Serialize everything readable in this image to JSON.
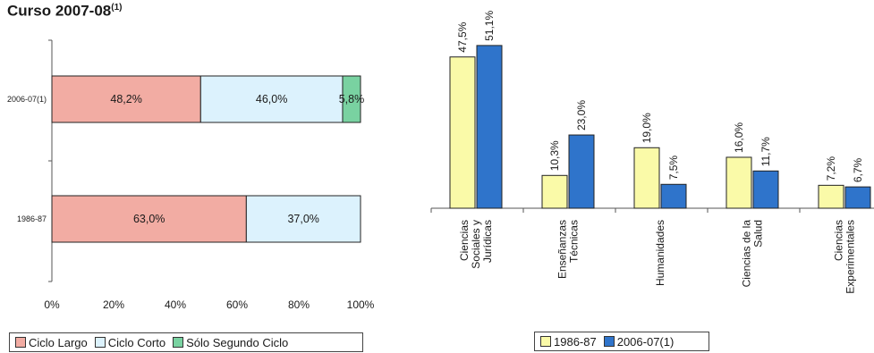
{
  "page": {
    "title": "Curso 2007-08",
    "title_sup": "(1)"
  },
  "chart_data": [
    {
      "type": "bar",
      "orientation": "horizontal",
      "stacked": true,
      "percent_stacked": true,
      "categories": [
        "2006-07(1)",
        "1986-87"
      ],
      "series": [
        {
          "name": "Ciclo Largo",
          "color": "#f2aca3",
          "values": [
            48.2,
            63.0
          ],
          "labels": [
            "48,2%",
            "63,0%"
          ]
        },
        {
          "name": "Ciclo Corto",
          "color": "#dcf2fd",
          "values": [
            46.0,
            37.0
          ],
          "labels": [
            "46,0%",
            "37,0%"
          ]
        },
        {
          "name": "Sólo Segundo Ciclo",
          "color": "#79d2a1",
          "values": [
            5.8,
            0
          ],
          "labels": [
            "5,8%",
            ""
          ]
        }
      ],
      "xticks": [
        "0%",
        "20%",
        "40%",
        "60%",
        "80%",
        "100%"
      ],
      "xlim": [
        0,
        100
      ],
      "legend_position": "bottom"
    },
    {
      "type": "bar",
      "orientation": "vertical",
      "categories": [
        "Ciencias Sociales y Jurídicas",
        "Enseñanzas Técnicas",
        "Humanidades",
        "Ciencias de la Salud",
        "Ciencias Experimentales"
      ],
      "category_lines": [
        [
          "Ciencias",
          "Sociales y",
          "Jurídicas"
        ],
        [
          "Enseñanzas",
          "Técnicas"
        ],
        [
          "Humanidades"
        ],
        [
          "Ciencias de la",
          "Salud"
        ],
        [
          "Ciencias",
          "Experimentales"
        ]
      ],
      "series": [
        {
          "name": "1986-87",
          "color": "#fafaa8",
          "values": [
            47.5,
            10.3,
            19.0,
            16.0,
            7.2
          ],
          "labels": [
            "47,5%",
            "10,3%",
            "19,0%",
            "16,0%",
            "7,2%"
          ]
        },
        {
          "name": "2006-07(1)",
          "color": "#2f74cb",
          "values": [
            51.1,
            23.0,
            7.5,
            11.7,
            6.7
          ],
          "labels": [
            "51,1%",
            "23,0%",
            "7,5%",
            "11,7%",
            "6,7%"
          ]
        }
      ],
      "ylim": [
        0,
        55
      ],
      "legend_position": "bottom"
    }
  ]
}
